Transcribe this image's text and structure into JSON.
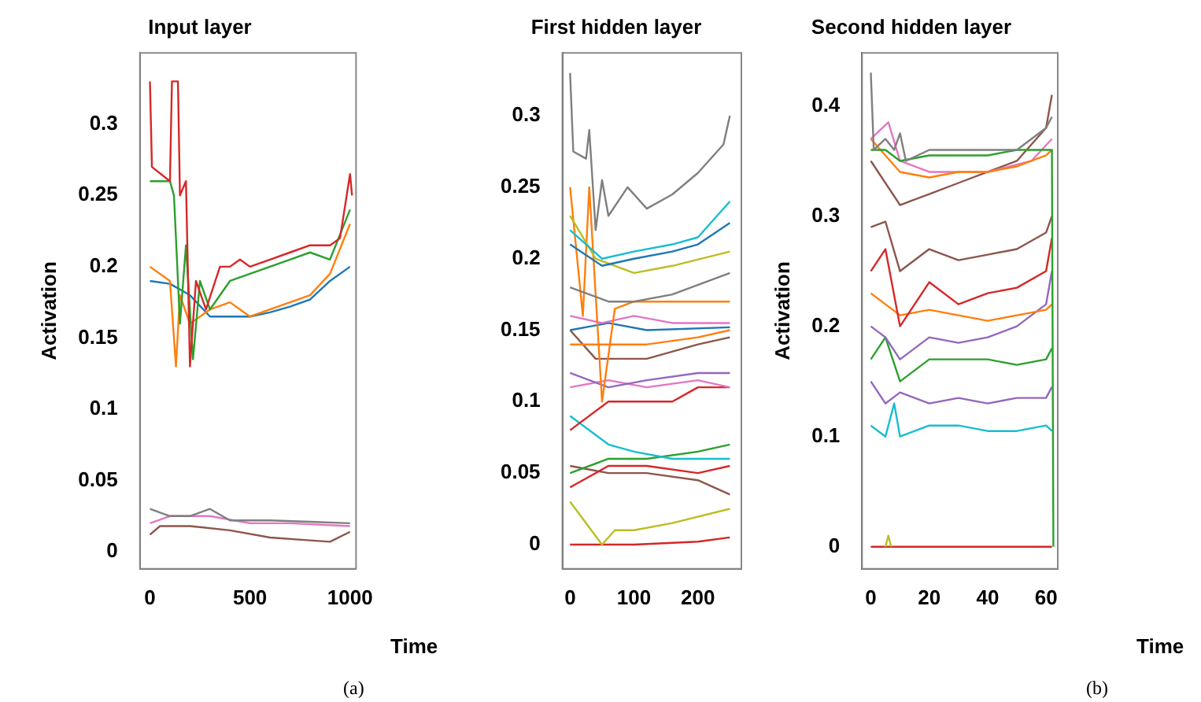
{
  "chart_data": [
    {
      "type": "line",
      "title": "Input layer",
      "ylabel": "Activation",
      "xlabel": "Time",
      "annotations": [
        "(a)"
      ],
      "grid": false,
      "marker": "none",
      "xlim": [
        -50,
        1030
      ],
      "xticks": [
        0,
        500,
        1000
      ],
      "ylim": [
        -0.012,
        0.35
      ],
      "yticks": [
        0,
        0.05,
        0.1,
        0.15,
        0.2,
        0.25,
        0.3
      ],
      "series": [
        {
          "color": "#d62728",
          "x": [
            0,
            10,
            100,
            110,
            140,
            150,
            180,
            200,
            230,
            280,
            350,
            400,
            450,
            500,
            600,
            700,
            800,
            900,
            950,
            1000,
            1010
          ],
          "values": [
            0.33,
            0.27,
            0.26,
            0.33,
            0.33,
            0.25,
            0.26,
            0.13,
            0.19,
            0.17,
            0.2,
            0.2,
            0.205,
            0.2,
            0.205,
            0.21,
            0.215,
            0.215,
            0.22,
            0.265,
            0.25
          ]
        },
        {
          "color": "#2ca02c",
          "x": [
            0,
            100,
            120,
            150,
            180,
            215,
            250,
            300,
            400,
            500,
            600,
            700,
            800,
            900,
            1000
          ],
          "values": [
            0.26,
            0.26,
            0.25,
            0.16,
            0.215,
            0.135,
            0.19,
            0.17,
            0.19,
            0.195,
            0.2,
            0.205,
            0.21,
            0.205,
            0.24
          ]
        },
        {
          "color": "#ff7f0e",
          "x": [
            0,
            100,
            130,
            150,
            200,
            300,
            400,
            500,
            600,
            700,
            800,
            900,
            1000
          ],
          "values": [
            0.2,
            0.19,
            0.13,
            0.18,
            0.16,
            0.17,
            0.175,
            0.165,
            0.17,
            0.175,
            0.18,
            0.195,
            0.23
          ]
        },
        {
          "color": "#1f77b4",
          "x": [
            0,
            100,
            200,
            300,
            500,
            600,
            700,
            800,
            900,
            1000
          ],
          "values": [
            0.19,
            0.188,
            0.18,
            0.165,
            0.165,
            0.168,
            0.172,
            0.177,
            0.19,
            0.2
          ]
        },
        {
          "color": "#7f7f7f",
          "x": [
            0,
            100,
            200,
            300,
            400,
            500,
            600,
            800,
            1000
          ],
          "values": [
            0.03,
            0.025,
            0.025,
            0.03,
            0.022,
            0.022,
            0.022,
            0.021,
            0.02
          ]
        },
        {
          "color": "#e377c2",
          "x": [
            0,
            100,
            300,
            500,
            700,
            1000
          ],
          "values": [
            0.02,
            0.025,
            0.025,
            0.02,
            0.02,
            0.018
          ]
        },
        {
          "color": "#8c564b",
          "x": [
            0,
            50,
            200,
            400,
            600,
            800,
            900,
            1000
          ],
          "values": [
            0.012,
            0.018,
            0.018,
            0.015,
            0.01,
            0.008,
            0.007,
            0.014
          ]
        }
      ]
    },
    {
      "type": "line",
      "title": "First hidden layer",
      "grid": false,
      "marker": "none",
      "xlim": [
        -12,
        268
      ],
      "xticks": [
        0,
        100,
        200
      ],
      "ylim": [
        -0.017,
        0.344
      ],
      "yticks": [
        0,
        0.05,
        0.1,
        0.15,
        0.2,
        0.25,
        0.3
      ],
      "series": [
        {
          "color": "#7f7f7f",
          "x": [
            0,
            5,
            25,
            30,
            40,
            50,
            60,
            90,
            120,
            160,
            200,
            240,
            250
          ],
          "values": [
            0.33,
            0.275,
            0.27,
            0.29,
            0.22,
            0.255,
            0.23,
            0.25,
            0.235,
            0.245,
            0.26,
            0.28,
            0.3
          ]
        },
        {
          "color": "#17becf",
          "x": [
            0,
            50,
            100,
            160,
            200,
            250
          ],
          "values": [
            0.22,
            0.2,
            0.205,
            0.21,
            0.215,
            0.24
          ]
        },
        {
          "color": "#1f77b4",
          "x": [
            0,
            50,
            100,
            160,
            200,
            250
          ],
          "values": [
            0.21,
            0.195,
            0.2,
            0.205,
            0.21,
            0.225
          ]
        },
        {
          "color": "#bcbd22",
          "x": [
            0,
            40,
            100,
            160,
            250
          ],
          "values": [
            0.23,
            0.2,
            0.19,
            0.195,
            0.205
          ]
        },
        {
          "color": "#7f7f7f",
          "x": [
            0,
            60,
            100,
            160,
            250
          ],
          "values": [
            0.18,
            0.17,
            0.17,
            0.175,
            0.19
          ]
        },
        {
          "color": "#ff7f0e",
          "x": [
            0,
            20,
            30,
            50,
            70,
            100,
            160,
            250
          ],
          "values": [
            0.25,
            0.16,
            0.25,
            0.1,
            0.165,
            0.17,
            0.17,
            0.17
          ]
        },
        {
          "color": "#e377c2",
          "x": [
            0,
            50,
            100,
            160,
            250
          ],
          "values": [
            0.16,
            0.155,
            0.16,
            0.155,
            0.155
          ]
        },
        {
          "color": "#1f77b4",
          "x": [
            0,
            60,
            120,
            250
          ],
          "values": [
            0.15,
            0.155,
            0.15,
            0.152
          ]
        },
        {
          "color": "#ff7f0e",
          "x": [
            0,
            60,
            120,
            200,
            250
          ],
          "values": [
            0.14,
            0.14,
            0.14,
            0.145,
            0.15
          ]
        },
        {
          "color": "#8c564b",
          "x": [
            0,
            40,
            80,
            120,
            200,
            250
          ],
          "values": [
            0.15,
            0.13,
            0.13,
            0.13,
            0.14,
            0.145
          ]
        },
        {
          "color": "#9467bd",
          "x": [
            0,
            60,
            120,
            200,
            250
          ],
          "values": [
            0.12,
            0.11,
            0.115,
            0.12,
            0.12
          ]
        },
        {
          "color": "#e377c2",
          "x": [
            0,
            60,
            120,
            200,
            250
          ],
          "values": [
            0.11,
            0.115,
            0.11,
            0.115,
            0.11
          ]
        },
        {
          "color": "#d62728",
          "x": [
            0,
            60,
            100,
            160,
            200,
            250
          ],
          "values": [
            0.08,
            0.1,
            0.1,
            0.1,
            0.11,
            0.11
          ]
        },
        {
          "color": "#17becf",
          "x": [
            0,
            60,
            100,
            160,
            250
          ],
          "values": [
            0.09,
            0.07,
            0.065,
            0.06,
            0.06
          ]
        },
        {
          "color": "#2ca02c",
          "x": [
            0,
            60,
            120,
            200,
            250
          ],
          "values": [
            0.05,
            0.06,
            0.06,
            0.065,
            0.07
          ]
        },
        {
          "color": "#d62728",
          "x": [
            0,
            60,
            120,
            200,
            250
          ],
          "values": [
            0.04,
            0.055,
            0.055,
            0.05,
            0.055
          ]
        },
        {
          "color": "#8c564b",
          "x": [
            0,
            60,
            120,
            200,
            250
          ],
          "values": [
            0.055,
            0.05,
            0.05,
            0.045,
            0.035
          ]
        },
        {
          "color": "#bcbd22",
          "x": [
            0,
            50,
            70,
            100,
            160,
            250
          ],
          "values": [
            0.03,
            0.0,
            0.01,
            0.01,
            0.015,
            0.025
          ]
        },
        {
          "color": "#d62728",
          "x": [
            0,
            100,
            200,
            250
          ],
          "values": [
            0.0,
            0.0,
            0.002,
            0.005
          ]
        }
      ]
    },
    {
      "type": "line",
      "title": "Second hidden layer",
      "ylabel": "Activation",
      "xlabel": "Time",
      "annotations": [
        "(b)"
      ],
      "grid": false,
      "marker": "none",
      "xlim": [
        -3,
        64
      ],
      "xticks": [
        0,
        20,
        40,
        60
      ],
      "ylim": [
        -0.02,
        0.448
      ],
      "yticks": [
        0,
        0.1,
        0.2,
        0.3,
        0.4
      ],
      "series": [
        {
          "color": "#7f7f7f",
          "x": [
            0,
            1,
            5,
            8,
            10,
            12,
            20,
            30,
            40,
            50,
            55,
            60,
            62
          ],
          "values": [
            0.43,
            0.36,
            0.37,
            0.36,
            0.375,
            0.35,
            0.36,
            0.36,
            0.36,
            0.36,
            0.37,
            0.38,
            0.39
          ]
        },
        {
          "color": "#2ca02c",
          "x": [
            0,
            5,
            10,
            20,
            30,
            40,
            50,
            60,
            62,
            62.5
          ],
          "values": [
            0.36,
            0.36,
            0.35,
            0.355,
            0.355,
            0.355,
            0.36,
            0.36,
            0.36,
            0
          ]
        },
        {
          "color": "#ff7f0e",
          "x": [
            0,
            10,
            20,
            30,
            40,
            50,
            60,
            62
          ],
          "values": [
            0.37,
            0.34,
            0.335,
            0.34,
            0.34,
            0.345,
            0.355,
            0.36
          ]
        },
        {
          "color": "#e377c2",
          "x": [
            0,
            6,
            10,
            20,
            40,
            55,
            62
          ],
          "values": [
            0.37,
            0.385,
            0.35,
            0.34,
            0.34,
            0.35,
            0.37
          ]
        },
        {
          "color": "#8c564b",
          "x": [
            0,
            10,
            20,
            30,
            40,
            50,
            60,
            62
          ],
          "values": [
            0.35,
            0.31,
            0.32,
            0.33,
            0.34,
            0.35,
            0.38,
            0.41
          ]
        },
        {
          "color": "#8c564b",
          "x": [
            0,
            5,
            10,
            20,
            30,
            40,
            50,
            60,
            62
          ],
          "values": [
            0.29,
            0.295,
            0.25,
            0.27,
            0.26,
            0.265,
            0.27,
            0.285,
            0.3
          ]
        },
        {
          "color": "#d62728",
          "x": [
            0,
            5,
            10,
            20,
            30,
            40,
            50,
            60,
            62
          ],
          "values": [
            0.25,
            0.27,
            0.2,
            0.24,
            0.22,
            0.23,
            0.235,
            0.25,
            0.28
          ]
        },
        {
          "color": "#ff7f0e",
          "x": [
            0,
            10,
            20,
            30,
            40,
            50,
            60,
            62
          ],
          "values": [
            0.23,
            0.21,
            0.215,
            0.21,
            0.205,
            0.21,
            0.215,
            0.22
          ]
        },
        {
          "color": "#9467bd",
          "x": [
            0,
            5,
            10,
            20,
            30,
            40,
            50,
            60,
            62
          ],
          "values": [
            0.2,
            0.19,
            0.17,
            0.19,
            0.185,
            0.19,
            0.2,
            0.22,
            0.25
          ]
        },
        {
          "color": "#2ca02c",
          "x": [
            0,
            5,
            10,
            20,
            30,
            40,
            50,
            60,
            62
          ],
          "values": [
            0.17,
            0.19,
            0.15,
            0.17,
            0.17,
            0.17,
            0.165,
            0.17,
            0.18
          ]
        },
        {
          "color": "#9467bd",
          "x": [
            0,
            5,
            10,
            20,
            30,
            40,
            50,
            60,
            62
          ],
          "values": [
            0.15,
            0.13,
            0.14,
            0.13,
            0.135,
            0.13,
            0.135,
            0.135,
            0.145
          ]
        },
        {
          "color": "#17becf",
          "x": [
            0,
            5,
            8,
            10,
            20,
            30,
            40,
            50,
            60,
            62
          ],
          "values": [
            0.11,
            0.1,
            0.13,
            0.1,
            0.11,
            0.11,
            0.105,
            0.105,
            0.11,
            0.105
          ]
        },
        {
          "color": "#bcbd22",
          "x": [
            5,
            6,
            7
          ],
          "values": [
            0,
            0.01,
            0
          ]
        },
        {
          "color": "#d62728",
          "x": [
            0,
            62
          ],
          "values": [
            0,
            0
          ]
        }
      ]
    }
  ]
}
